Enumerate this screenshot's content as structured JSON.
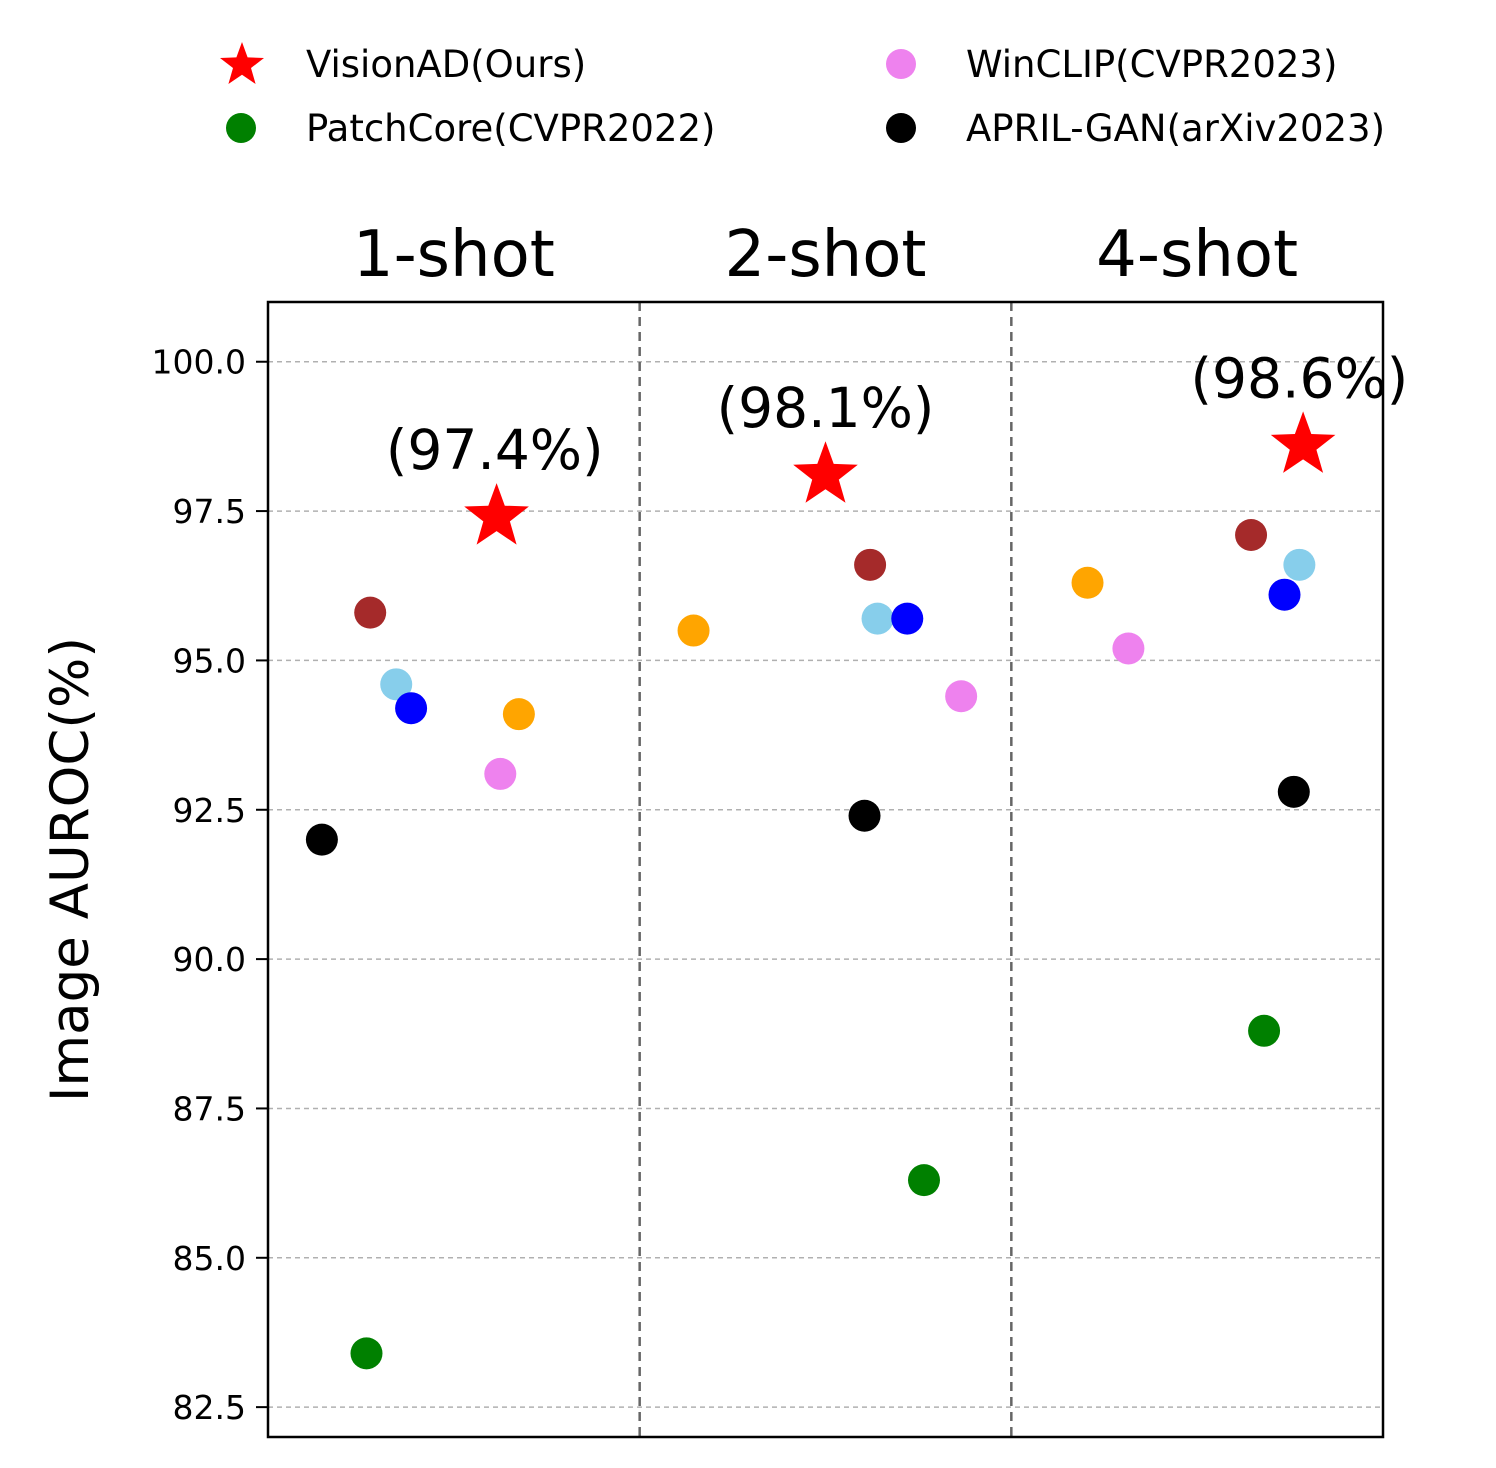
{
  "legend": [
    {
      "label": "VisionAD(Ours)",
      "color": "#ff0000",
      "marker": "star"
    },
    {
      "label": "WinCLIP(CVPR2023)",
      "color": "#ee82ee",
      "marker": "circle"
    },
    {
      "label": "PatchCore(CVPR2022)",
      "color": "#008000",
      "marker": "circle"
    },
    {
      "label": "APRIL-GAN(arXiv2023)",
      "color": "#000000",
      "marker": "circle"
    }
  ],
  "chart_data": {
    "type": "scatter",
    "ylabel": "Image AUROC(%)",
    "xlabel": "",
    "ylim": [
      82,
      101
    ],
    "yticks": [
      "82.5",
      "85.0",
      "87.5",
      "90.0",
      "92.5",
      "95.0",
      "97.5",
      "100.0"
    ],
    "grid": "horizontal dashed",
    "legend_position": "top",
    "panels": [
      {
        "title": "1-shot",
        "annotation": "(97.4%)",
        "points": [
          {
            "series": "APRIL-GAN(arXiv2023)",
            "color": "#000000",
            "marker": "circle",
            "y": 92.0
          },
          {
            "series": "PatchCore(CVPR2022)",
            "color": "#008000",
            "marker": "circle",
            "y": 83.4
          },
          {
            "series": "",
            "color": "#a52a2a",
            "marker": "circle",
            "y": 95.8
          },
          {
            "series": "",
            "color": "#87ceeb",
            "marker": "circle",
            "y": 94.6
          },
          {
            "series": "",
            "color": "#0000ff",
            "marker": "circle",
            "y": 94.2
          },
          {
            "series": "VisionAD(Ours)",
            "color": "#ff0000",
            "marker": "star",
            "y": 97.4
          },
          {
            "series": "WinCLIP(CVPR2023)",
            "color": "#ee82ee",
            "marker": "circle",
            "y": 93.1
          },
          {
            "series": "",
            "color": "#ffa500",
            "marker": "circle",
            "y": 94.1
          }
        ]
      },
      {
        "title": "2-shot",
        "annotation": "(98.1%)",
        "points": [
          {
            "series": "",
            "color": "#ffa500",
            "marker": "circle",
            "y": 95.5
          },
          {
            "series": "VisionAD(Ours)",
            "color": "#ff0000",
            "marker": "star",
            "y": 98.1
          },
          {
            "series": "APRIL-GAN(arXiv2023)",
            "color": "#000000",
            "marker": "circle",
            "y": 92.4
          },
          {
            "series": "",
            "color": "#a52a2a",
            "marker": "circle",
            "y": 96.6
          },
          {
            "series": "",
            "color": "#87ceeb",
            "marker": "circle",
            "y": 95.7
          },
          {
            "series": "",
            "color": "#0000ff",
            "marker": "circle",
            "y": 95.7
          },
          {
            "series": "PatchCore(CVPR2022)",
            "color": "#008000",
            "marker": "circle",
            "y": 86.3
          },
          {
            "series": "WinCLIP(CVPR2023)",
            "color": "#ee82ee",
            "marker": "circle",
            "y": 94.4
          }
        ]
      },
      {
        "title": "4-shot",
        "annotation": "(98.6%)",
        "points": [
          {
            "series": "",
            "color": "#ffa500",
            "marker": "circle",
            "y": 96.3
          },
          {
            "series": "WinCLIP(CVPR2023)",
            "color": "#ee82ee",
            "marker": "circle",
            "y": 95.2
          },
          {
            "series": "",
            "color": "#a52a2a",
            "marker": "circle",
            "y": 97.1
          },
          {
            "series": "PatchCore(CVPR2022)",
            "color": "#008000",
            "marker": "circle",
            "y": 88.8
          },
          {
            "series": "",
            "color": "#0000ff",
            "marker": "circle",
            "y": 96.1
          },
          {
            "series": "APRIL-GAN(arXiv2023)",
            "color": "#000000",
            "marker": "circle",
            "y": 92.8
          },
          {
            "series": "",
            "color": "#87ceeb",
            "marker": "circle",
            "y": 96.6
          },
          {
            "series": "VisionAD(Ours)",
            "color": "#ff0000",
            "marker": "star",
            "y": 98.6
          }
        ]
      }
    ]
  }
}
